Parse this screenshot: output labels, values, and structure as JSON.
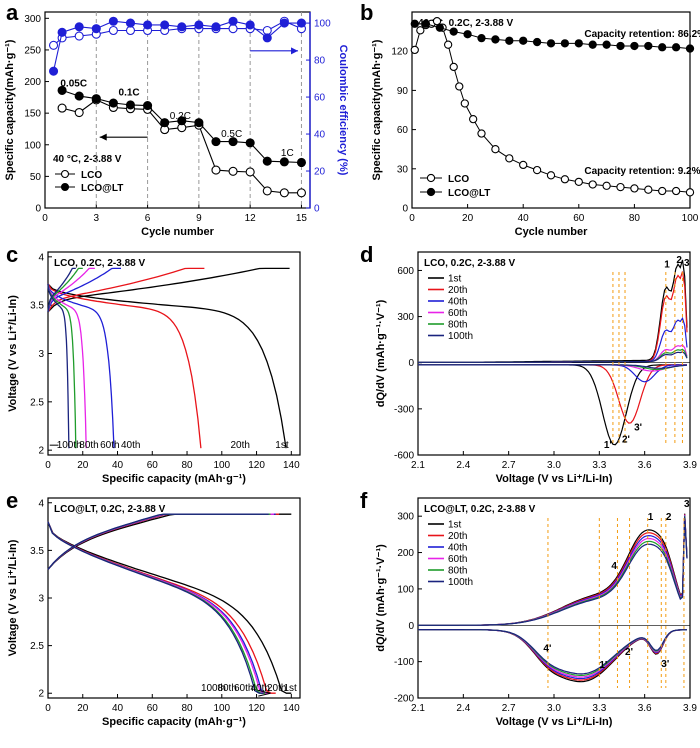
{
  "panels": {
    "a": {
      "letter": "a"
    },
    "b": {
      "letter": "b"
    },
    "c": {
      "letter": "c"
    },
    "d": {
      "letter": "d"
    },
    "e": {
      "letter": "e"
    },
    "f": {
      "letter": "f"
    }
  },
  "colors": {
    "black": "#000000",
    "blue": "#1f1fd6",
    "red": "#e8141a",
    "cyan": "#00a3e8",
    "magenta": "#e823e8",
    "green": "#1f9c2b",
    "navy": "#1a237e",
    "orange": "#f39c12",
    "gray": "#888888"
  },
  "chart_data": [
    {
      "id": "a",
      "type": "line",
      "title": "",
      "xlabel": "Cycle number",
      "ylabel": "Specific capacity(mAh·g⁻¹)",
      "ylabel_right": "Coulombic efficiency (%)",
      "xlim": [
        0,
        15.5
      ],
      "ylim": [
        0,
        310
      ],
      "ylim_right": [
        0,
        106
      ],
      "xticks": [
        0,
        3,
        6,
        9,
        12,
        15
      ],
      "yticks": [
        0,
        50,
        100,
        150,
        200,
        250,
        300
      ],
      "yticks_right": [
        0,
        20,
        40,
        60,
        80,
        100
      ],
      "grid_vlines": [
        3,
        6,
        9,
        12,
        15
      ],
      "condition_label": "40 °C, 2-3.88 V",
      "rate_labels": [
        {
          "text": "0.05C",
          "x": 0.9,
          "y": 192,
          "bold": true
        },
        {
          "text": "0.1C",
          "x": 4.3,
          "y": 178,
          "bold": true
        },
        {
          "text": "0.2C",
          "x": 7.3,
          "y": 141,
          "bold": false
        },
        {
          "text": "0.5C",
          "x": 10.3,
          "y": 112,
          "bold": false
        },
        {
          "text": "1C",
          "x": 13.8,
          "y": 82,
          "bold": false
        }
      ],
      "legend": [
        "LCO",
        "LCO@LT"
      ],
      "legend_position": "bottom-left",
      "series": [
        {
          "name": "LCO",
          "axis": "left",
          "marker": "open-circle",
          "color": "#000000",
          "x": [
            1,
            2,
            3,
            4,
            5,
            6,
            7,
            8,
            9,
            10,
            11,
            12,
            13,
            14,
            15
          ],
          "y": [
            158,
            151,
            171,
            159,
            157,
            156,
            124,
            127,
            131,
            60,
            58,
            57,
            27,
            24,
            24
          ]
        },
        {
          "name": "LCO@LT",
          "axis": "left",
          "marker": "filled-circle",
          "color": "#000000",
          "x": [
            1,
            2,
            3,
            4,
            5,
            6,
            7,
            8,
            9,
            10,
            11,
            12,
            13,
            14,
            15
          ],
          "y": [
            186,
            177,
            173,
            166,
            163,
            162,
            135,
            138,
            135,
            105,
            105,
            103,
            74,
            73,
            72
          ]
        },
        {
          "axis": "right",
          "marker": "open-circle",
          "color": "#1f1fd6",
          "x": [
            0.5,
            1,
            2,
            3,
            4,
            5,
            6,
            7,
            8,
            9,
            10,
            11,
            12,
            13,
            14,
            15
          ],
          "y": [
            88,
            92,
            93,
            94,
            96,
            96,
            96,
            96,
            97,
            97,
            97,
            97,
            97,
            96,
            101,
            97
          ]
        },
        {
          "axis": "right",
          "marker": "filled-circle",
          "color": "#1f1fd6",
          "x": [
            0.5,
            1,
            2,
            3,
            4,
            5,
            6,
            7,
            8,
            9,
            10,
            11,
            12,
            13,
            14,
            15
          ],
          "y": [
            74,
            95,
            98,
            97,
            101,
            100,
            99,
            99,
            98,
            99,
            98,
            101,
            99,
            92,
            100,
            100
          ]
        }
      ],
      "arrows": [
        {
          "axis": "left",
          "from": [
            6,
            112
          ],
          "to": [
            3.2,
            112
          ]
        },
        {
          "axis": "right",
          "from": [
            12,
            85
          ],
          "to": [
            14.8,
            85
          ]
        }
      ]
    },
    {
      "id": "b",
      "type": "scatter",
      "xlabel": "Cycle number",
      "ylabel": "Specific capacity(mAh·g⁻¹)",
      "xlim": [
        0,
        100
      ],
      "ylim": [
        0,
        150
      ],
      "xticks": [
        0,
        20,
        40,
        60,
        80,
        100
      ],
      "yticks": [
        0,
        30,
        60,
        90,
        120
      ],
      "condition_label": "40 °C, 0.2C, 2-3.88 V",
      "legend": [
        "LCO",
        "LCO@LT"
      ],
      "legend_position": "bottom-left",
      "annotations": [
        {
          "text": "Capacity retention: 86.2%",
          "x": 62,
          "y": 131
        },
        {
          "text": "Capacity retention: 9.2%",
          "x": 62,
          "y": 26
        }
      ],
      "series": [
        {
          "name": "LCO",
          "marker": "open-circle",
          "color": "#000000",
          "x": [
            1,
            3,
            5,
            7,
            9,
            11,
            13,
            15,
            17,
            19,
            22,
            25,
            30,
            35,
            40,
            45,
            50,
            55,
            60,
            65,
            70,
            75,
            80,
            85,
            90,
            95,
            100
          ],
          "y": [
            121,
            136,
            140,
            141,
            143,
            138,
            125,
            108,
            93,
            80,
            68,
            57,
            45,
            38,
            33,
            29,
            25,
            22,
            20,
            18,
            17,
            16,
            15,
            14,
            13,
            13,
            12
          ]
        },
        {
          "name": "LCO@LT",
          "marker": "filled-circle",
          "color": "#000000",
          "x": [
            1,
            5,
            10,
            15,
            20,
            25,
            30,
            35,
            40,
            45,
            50,
            55,
            60,
            65,
            70,
            75,
            80,
            85,
            90,
            95,
            100
          ],
          "y": [
            141,
            141,
            138,
            135,
            133,
            130,
            129,
            128,
            128,
            127,
            126,
            126,
            126,
            125,
            125,
            124,
            124,
            124,
            123,
            123,
            122
          ]
        }
      ]
    },
    {
      "id": "c",
      "type": "line",
      "xlabel": "Specific capacity (mAh·g⁻¹)",
      "ylabel": "Voltage (V vs Li⁺/Li-In)",
      "xlim": [
        0,
        145
      ],
      "ylim": [
        1.95,
        4.05
      ],
      "xticks": [
        0,
        20,
        40,
        60,
        80,
        100,
        120,
        140
      ],
      "yticks": [
        2.0,
        2.5,
        3.0,
        3.5,
        4.0
      ],
      "condition_label": "LCO, 0.2C, 2-3.88 V",
      "cycle_labels": [
        "100th",
        "80th",
        "60th",
        "40th",
        "20th",
        "1st"
      ],
      "series": [
        {
          "cycle": "1st",
          "color": "#000000",
          "charge_end": 139,
          "discharge_end": 137
        },
        {
          "cycle": "20th",
          "color": "#e8141a",
          "charge_end": 90,
          "discharge_end": 88
        },
        {
          "cycle": "40th",
          "color": "#1f1fd6",
          "charge_end": 42,
          "discharge_end": 38
        },
        {
          "cycle": "60th",
          "color": "#e823e8",
          "charge_end": 27,
          "discharge_end": 22
        },
        {
          "cycle": "80th",
          "color": "#1f9c2b",
          "charge_end": 20,
          "discharge_end": 16
        },
        {
          "cycle": "100th",
          "color": "#1a237e",
          "charge_end": 16,
          "discharge_end": 12
        }
      ]
    },
    {
      "id": "d",
      "type": "line",
      "xlabel": "Voltage (V vs Li⁺/Li-In)",
      "ylabel": "dQ/dV (mAh·g⁻¹·V⁻¹)",
      "xlim": [
        2.1,
        3.9
      ],
      "ylim": [
        -600,
        720
      ],
      "xticks": [
        2.1,
        2.4,
        2.7,
        3.0,
        3.3,
        3.6,
        3.9
      ],
      "yticks": [
        -600,
        -300,
        0,
        300,
        600
      ],
      "condition_label": "LCO, 0.2C, 2-3.88 V",
      "legend": [
        "1st",
        "20th",
        "40th",
        "60th",
        "80th",
        "100th"
      ],
      "legend_position": "top-left",
      "peak_labels": [
        {
          "text": "1",
          "x": 3.73,
          "y": 620
        },
        {
          "text": "2",
          "x": 3.81,
          "y": 650
        },
        {
          "text": "3",
          "x": 3.86,
          "y": 630
        },
        {
          "text": "1'",
          "x": 3.33,
          "y": -555
        },
        {
          "text": "2'",
          "x": 3.45,
          "y": -520
        },
        {
          "text": "3'",
          "x": 3.53,
          "y": -440
        }
      ],
      "guide_x": [
        3.74,
        3.8,
        3.85,
        3.39,
        3.43,
        3.47
      ],
      "series": [
        {
          "name": "1st",
          "color": "#000000",
          "charge_peak": 580,
          "discharge_peak": -520,
          "discharge_center": 3.4,
          "discharge_width": 0.11
        },
        {
          "name": "20th",
          "color": "#e8141a",
          "charge_peak": 520,
          "discharge_peak": -380,
          "discharge_center": 3.5,
          "discharge_width": 0.1
        },
        {
          "name": "40th",
          "color": "#1f1fd6",
          "charge_peak": 250,
          "discharge_peak": -110,
          "discharge_center": 3.6,
          "discharge_width": 0.09
        },
        {
          "name": "60th",
          "color": "#e823e8",
          "charge_peak": 95,
          "discharge_peak": -40,
          "discharge_center": 3.65,
          "discharge_width": 0.12
        },
        {
          "name": "80th",
          "color": "#1f9c2b",
          "charge_peak": 70,
          "discharge_peak": -30,
          "discharge_center": 3.68,
          "discharge_width": 0.12
        },
        {
          "name": "100th",
          "color": "#1a237e",
          "charge_peak": 55,
          "discharge_peak": -22,
          "discharge_center": 3.7,
          "discharge_width": 0.12
        }
      ]
    },
    {
      "id": "e",
      "type": "line",
      "xlabel": "Specific capacity (mAh·g⁻¹)",
      "ylabel": "Voltage (V vs Li⁺/Li-In)",
      "xlim": [
        0,
        145
      ],
      "ylim": [
        1.95,
        4.05
      ],
      "xticks": [
        0,
        20,
        40,
        60,
        80,
        100,
        120,
        140
      ],
      "yticks": [
        2.0,
        2.5,
        3.0,
        3.5,
        4.0
      ],
      "condition_label": "LCO@LT, 0.2C, 2-3.88 V",
      "cycle_labels": [
        "100th",
        "80th",
        "60th",
        "40th",
        "20th",
        "1st"
      ],
      "series": [
        {
          "cycle": "1st",
          "color": "#000000",
          "charge_end": 140,
          "discharge_end": 140
        },
        {
          "cycle": "20th",
          "color": "#e8141a",
          "charge_end": 133,
          "discharge_end": 131
        },
        {
          "cycle": "40th",
          "color": "#1f1fd6",
          "charge_end": 131,
          "discharge_end": 128
        },
        {
          "cycle": "60th",
          "color": "#e823e8",
          "charge_end": 130,
          "discharge_end": 127
        },
        {
          "cycle": "80th",
          "color": "#1f9c2b",
          "charge_end": 128,
          "discharge_end": 125
        },
        {
          "cycle": "100th",
          "color": "#1a237e",
          "charge_end": 127,
          "discharge_end": 124
        }
      ]
    },
    {
      "id": "f",
      "type": "line",
      "xlabel": "Voltage (V vs Li⁺/Li-In)",
      "ylabel": "dQ/dV (mAh·g⁻¹·V⁻¹)",
      "xlim": [
        2.1,
        3.9
      ],
      "ylim": [
        -200,
        350
      ],
      "xticks": [
        2.1,
        2.4,
        2.7,
        3.0,
        3.3,
        3.6,
        3.9
      ],
      "yticks": [
        -200,
        -100,
        0,
        100,
        200,
        300
      ],
      "condition_label": "LCO@LT, 0.2C, 2-3.88 V",
      "legend": [
        "1st",
        "20th",
        "40th",
        "60th",
        "80th",
        "100th"
      ],
      "legend_position": "top-left",
      "peak_labels": [
        {
          "text": "1",
          "x": 3.62,
          "y": 290
        },
        {
          "text": "2",
          "x": 3.74,
          "y": 290
        },
        {
          "text": "3",
          "x": 3.86,
          "y": 325
        },
        {
          "text": "4",
          "x": 3.38,
          "y": 155
        },
        {
          "text": "1'",
          "x": 3.3,
          "y": -118
        },
        {
          "text": "2'",
          "x": 3.47,
          "y": -82
        },
        {
          "text": "3'",
          "x": 3.71,
          "y": -115
        },
        {
          "text": "4'",
          "x": 2.93,
          "y": -72
        }
      ],
      "guide_x": [
        3.62,
        3.74,
        3.86,
        3.42,
        3.3,
        3.5,
        3.71,
        2.96
      ],
      "series": [
        {
          "name": "1st",
          "color": "#000000"
        },
        {
          "name": "20th",
          "color": "#e8141a"
        },
        {
          "name": "40th",
          "color": "#1f1fd6"
        },
        {
          "name": "60th",
          "color": "#e823e8"
        },
        {
          "name": "80th",
          "color": "#1f9c2b"
        },
        {
          "name": "100th",
          "color": "#1a237e"
        }
      ]
    }
  ]
}
